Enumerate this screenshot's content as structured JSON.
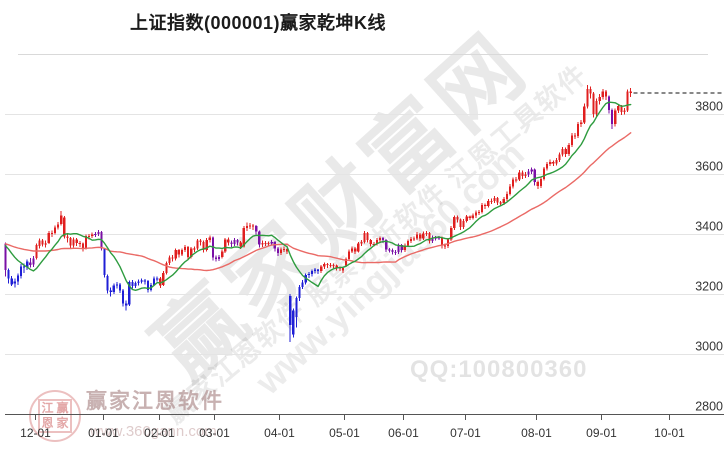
{
  "title": "上证指数(000001)赢家乾坤K线",
  "watermarks": {
    "big_text": "赢家财富网",
    "software_line": "赢家江恩软件 股票分析软件 江恩工具软件",
    "site_url": "www.yingjia360.com",
    "qq_text": "QQ:100800360",
    "brand_name": "赢家江恩软件",
    "brand_url": "www.360gann.com",
    "seal": {
      "chars": [
        "江",
        "赢",
        "恩",
        "家"
      ]
    }
  },
  "axis": {
    "y_labels": [
      3800,
      3600,
      3400,
      3200,
      3000,
      2800
    ],
    "x_ticks": [
      {
        "label": "12-01",
        "idx": 9.5
      },
      {
        "label": "01-01",
        "idx": 31.5
      },
      {
        "label": "02-01",
        "idx": 49.5
      },
      {
        "label": "03-01",
        "idx": 67.5
      },
      {
        "label": "04-01",
        "idx": 88.5
      },
      {
        "label": "05-01",
        "idx": 109.5
      },
      {
        "label": "06-01",
        "idx": 128.5
      },
      {
        "label": "07-01",
        "idx": 148.5
      },
      {
        "label": "08-01",
        "idx": 171.5
      },
      {
        "label": "09-01",
        "idx": 192.5
      },
      {
        "label": "10-01",
        "idx": 214.5
      }
    ]
  },
  "chart_data": {
    "type": "candlestick",
    "title": "上证指数(000001)赢家乾坤K线",
    "index_name": "上证指数",
    "symbol": "000001",
    "period": "daily",
    "x_range_months": [
      "2024-11",
      "2025-10"
    ],
    "ylim": [
      2800,
      3920
    ],
    "grid": true,
    "last_close": 3870,
    "candle_color_map": {
      "0": "#E01F1F",
      "1": "#1F1FD6",
      "2": "#7A10A6"
    },
    "candle_color_meaning": {
      "0": "red-uptrend",
      "1": "blue-downtrend",
      "2": "purple-neutral"
    },
    "overlays": [
      {
        "name": "short-ma",
        "window": 10,
        "color": "#2E9C3F"
      },
      {
        "name": "long-ma",
        "window": 35,
        "color": "#EA6A66"
      }
    ],
    "ma_seed": 3370,
    "candles_format": [
      "open",
      "close",
      "low",
      "high",
      "colorCode"
    ],
    "candles": [
      [
        3368,
        3280,
        3258,
        3372,
        2
      ],
      [
        3280,
        3252,
        3235,
        3285,
        1
      ],
      [
        3252,
        3232,
        3227,
        3260,
        1
      ],
      [
        3235,
        3241,
        3222,
        3252,
        1
      ],
      [
        3241,
        3262,
        3230,
        3268,
        1
      ],
      [
        3260,
        3292,
        3252,
        3300,
        1
      ],
      [
        3292,
        3288,
        3270,
        3302,
        1
      ],
      [
        3290,
        3308,
        3280,
        3315,
        1
      ],
      [
        3305,
        3296,
        3288,
        3320,
        2
      ],
      [
        3298,
        3318,
        3290,
        3326,
        2
      ],
      [
        3320,
        3363,
        3315,
        3368,
        0
      ],
      [
        3360,
        3379,
        3352,
        3385,
        0
      ],
      [
        3379,
        3365,
        3358,
        3383,
        0
      ],
      [
        3366,
        3369,
        3355,
        3378,
        0
      ],
      [
        3370,
        3404,
        3366,
        3410,
        0
      ],
      [
        3404,
        3402,
        3390,
        3412,
        0
      ],
      [
        3403,
        3422,
        3398,
        3428,
        0
      ],
      [
        3422,
        3432,
        3415,
        3440,
        0
      ],
      [
        3434,
        3461,
        3428,
        3477,
        0
      ],
      [
        3455,
        3391,
        3385,
        3460,
        0
      ],
      [
        3391,
        3386,
        3372,
        3398,
        0
      ],
      [
        3386,
        3361,
        3350,
        3390,
        0
      ],
      [
        3362,
        3382,
        3355,
        3388,
        0
      ],
      [
        3382,
        3370,
        3360,
        3386,
        0
      ],
      [
        3370,
        3368,
        3356,
        3376,
        0
      ],
      [
        3368,
        3351,
        3342,
        3372,
        0
      ],
      [
        3352,
        3393,
        3348,
        3398,
        0
      ],
      [
        3393,
        3393,
        3382,
        3400,
        0
      ],
      [
        3393,
        3398,
        3386,
        3405,
        0
      ],
      [
        3398,
        3400,
        3390,
        3407,
        2
      ],
      [
        3400,
        3407,
        3394,
        3414,
        2
      ],
      [
        3407,
        3352,
        3345,
        3410,
        2
      ],
      [
        3350,
        3263,
        3255,
        3352,
        1
      ],
      [
        3260,
        3212,
        3202,
        3265,
        1
      ],
      [
        3212,
        3206,
        3192,
        3222,
        1
      ],
      [
        3206,
        3229,
        3200,
        3235,
        1
      ],
      [
        3229,
        3231,
        3218,
        3240,
        1
      ],
      [
        3231,
        3212,
        3204,
        3236,
        1
      ],
      [
        3212,
        3169,
        3158,
        3216,
        1
      ],
      [
        3169,
        3161,
        3145,
        3178,
        1
      ],
      [
        3165,
        3240,
        3160,
        3245,
        1
      ],
      [
        3240,
        3227,
        3218,
        3246,
        1
      ],
      [
        3227,
        3236,
        3220,
        3242,
        1
      ],
      [
        3236,
        3242,
        3228,
        3248,
        1
      ],
      [
        3242,
        3245,
        3235,
        3252,
        1
      ],
      [
        3245,
        3243,
        3232,
        3250,
        1
      ],
      [
        3243,
        3213,
        3205,
        3246,
        1
      ],
      [
        3213,
        3230,
        3208,
        3236,
        1
      ],
      [
        3230,
        3252,
        3226,
        3258,
        1
      ],
      [
        3252,
        3251,
        3242,
        3258,
        1
      ],
      [
        3251,
        3229,
        3220,
        3256,
        0
      ],
      [
        3230,
        3270,
        3226,
        3276,
        0
      ],
      [
        3270,
        3303,
        3265,
        3308,
        0
      ],
      [
        3303,
        3322,
        3296,
        3328,
        0
      ],
      [
        3322,
        3318,
        3308,
        3330,
        0
      ],
      [
        3318,
        3346,
        3312,
        3352,
        0
      ],
      [
        3346,
        3332,
        3322,
        3350,
        0
      ],
      [
        3332,
        3346,
        3326,
        3352,
        0
      ],
      [
        3346,
        3356,
        3340,
        3364,
        0
      ],
      [
        3356,
        3324,
        3316,
        3360,
        0
      ],
      [
        3324,
        3351,
        3318,
        3356,
        0
      ],
      [
        3351,
        3351,
        3340,
        3358,
        0
      ],
      [
        3351,
        3379,
        3346,
        3384,
        0
      ],
      [
        3379,
        3373,
        3362,
        3383,
        0
      ],
      [
        3373,
        3346,
        3338,
        3378,
        0
      ],
      [
        3346,
        3380,
        3342,
        3386,
        0
      ],
      [
        3380,
        3388,
        3372,
        3395,
        0
      ],
      [
        3388,
        3321,
        3312,
        3392,
        2
      ],
      [
        3321,
        3317,
        3308,
        3328,
        2
      ],
      [
        3317,
        3324,
        3310,
        3330,
        2
      ],
      [
        3324,
        3342,
        3318,
        3348,
        0
      ],
      [
        3342,
        3381,
        3336,
        3386,
        0
      ],
      [
        3381,
        3372,
        3362,
        3388,
        0
      ],
      [
        3372,
        3366,
        3356,
        3378,
        2
      ],
      [
        3366,
        3380,
        3360,
        3386,
        2
      ],
      [
        3380,
        3372,
        3362,
        3384,
        2
      ],
      [
        3372,
        3359,
        3350,
        3376,
        0
      ],
      [
        3359,
        3420,
        3355,
        3426,
        0
      ],
      [
        3420,
        3426,
        3410,
        3439,
        0
      ],
      [
        3426,
        3429,
        3416,
        3436,
        0
      ],
      [
        3429,
        3426,
        3414,
        3434,
        0
      ],
      [
        3426,
        3408,
        3398,
        3430,
        2
      ],
      [
        3408,
        3365,
        3355,
        3412,
        2
      ],
      [
        3365,
        3370,
        3356,
        3378,
        0
      ],
      [
        3370,
        3370,
        3360,
        3377,
        0
      ],
      [
        3370,
        3368,
        3358,
        3375,
        0
      ],
      [
        3368,
        3373,
        3362,
        3380,
        2
      ],
      [
        3373,
        3351,
        3342,
        3377,
        2
      ],
      [
        3351,
        3336,
        3326,
        3356,
        2
      ],
      [
        3336,
        3348,
        3330,
        3355,
        0
      ],
      [
        3348,
        3350,
        3340,
        3358,
        0
      ],
      [
        3350,
        3342,
        3334,
        3352,
        0
      ],
      [
        3193,
        3096,
        3040,
        3200,
        1
      ],
      [
        3065,
        3145,
        3055,
        3152,
        1
      ],
      [
        3123,
        3186,
        3089,
        3192,
        1
      ],
      [
        3186,
        3224,
        3176,
        3230,
        1
      ],
      [
        3224,
        3239,
        3216,
        3246,
        1
      ],
      [
        3239,
        3263,
        3232,
        3268,
        1
      ],
      [
        3263,
        3267,
        3254,
        3273,
        1
      ],
      [
        3267,
        3276,
        3258,
        3281,
        1
      ],
      [
        3276,
        3281,
        3268,
        3287,
        1
      ],
      [
        3281,
        3277,
        3266,
        3284,
        1
      ],
      [
        3277,
        3291,
        3270,
        3296,
        0
      ],
      [
        3291,
        3300,
        3284,
        3305,
        0
      ],
      [
        3300,
        3296,
        3287,
        3303,
        0
      ],
      [
        3296,
        3297,
        3288,
        3303,
        0
      ],
      [
        3297,
        3295,
        3286,
        3301,
        0
      ],
      [
        3295,
        3288,
        3278,
        3298,
        0
      ],
      [
        3288,
        3286,
        3276,
        3292,
        0
      ],
      [
        3286,
        3279,
        3270,
        3290,
        0
      ],
      [
        3295,
        3316,
        3290,
        3322,
        0
      ],
      [
        3316,
        3342,
        3310,
        3348,
        0
      ],
      [
        3342,
        3352,
        3336,
        3358,
        0
      ],
      [
        3352,
        3342,
        3334,
        3356,
        0
      ],
      [
        3342,
        3369,
        3338,
        3374,
        0
      ],
      [
        3369,
        3374,
        3360,
        3380,
        0
      ],
      [
        3374,
        3403,
        3368,
        3410,
        0
      ],
      [
        3403,
        3380,
        3372,
        3406,
        0
      ],
      [
        3380,
        3367,
        3358,
        3384,
        0
      ],
      [
        3367,
        3367,
        3358,
        3374,
        0
      ],
      [
        3367,
        3380,
        3362,
        3386,
        0
      ],
      [
        3380,
        3387,
        3374,
        3392,
        0
      ],
      [
        3387,
        3380,
        3370,
        3390,
        2
      ],
      [
        3380,
        3348,
        3340,
        3383,
        2
      ],
      [
        3348,
        3347,
        3338,
        3354,
        2
      ],
      [
        3347,
        3340,
        3332,
        3352,
        2
      ],
      [
        3340,
        3340,
        3330,
        3347,
        2
      ],
      [
        3340,
        3363,
        3334,
        3368,
        2
      ],
      [
        3363,
        3347,
        3338,
        3367,
        2
      ],
      [
        3347,
        3362,
        3340,
        3368,
        0
      ],
      [
        3362,
        3376,
        3356,
        3382,
        0
      ],
      [
        3376,
        3384,
        3370,
        3390,
        0
      ],
      [
        3384,
        3385,
        3376,
        3392,
        0
      ],
      [
        3385,
        3399,
        3380,
        3406,
        0
      ],
      [
        3399,
        3385,
        3377,
        3403,
        0
      ],
      [
        3385,
        3402,
        3380,
        3408,
        0
      ],
      [
        3402,
        3403,
        3394,
        3410,
        0
      ],
      [
        3403,
        3377,
        3368,
        3406,
        0
      ],
      [
        3377,
        3389,
        3370,
        3395,
        2
      ],
      [
        3389,
        3388,
        3378,
        3394,
        2
      ],
      [
        3388,
        3388,
        3380,
        3394,
        2
      ],
      [
        3388,
        3362,
        3352,
        3392,
        0
      ],
      [
        3362,
        3360,
        3350,
        3368,
        0
      ],
      [
        3360,
        3381,
        3354,
        3386,
        0
      ],
      [
        3381,
        3420,
        3376,
        3426,
        0
      ],
      [
        3420,
        3456,
        3414,
        3462,
        0
      ],
      [
        3456,
        3448,
        3438,
        3462,
        0
      ],
      [
        3448,
        3424,
        3414,
        3452,
        0
      ],
      [
        3424,
        3444,
        3416,
        3450,
        0
      ],
      [
        3444,
        3458,
        3438,
        3463,
        0
      ],
      [
        3458,
        3454,
        3446,
        3462,
        0
      ],
      [
        3454,
        3461,
        3448,
        3468,
        0
      ],
      [
        3461,
        3472,
        3454,
        3478,
        0
      ],
      [
        3472,
        3473,
        3464,
        3480,
        0
      ],
      [
        3473,
        3497,
        3468,
        3503,
        0
      ],
      [
        3497,
        3493,
        3484,
        3501,
        0
      ],
      [
        3493,
        3510,
        3488,
        3516,
        0
      ],
      [
        3510,
        3510,
        3500,
        3518,
        0
      ],
      [
        3510,
        3520,
        3504,
        3527,
        0
      ],
      [
        3520,
        3505,
        3497,
        3524,
        0
      ],
      [
        3505,
        3503,
        3494,
        3510,
        0
      ],
      [
        3503,
        3517,
        3497,
        3524,
        0
      ],
      [
        3517,
        3534,
        3510,
        3541,
        0
      ],
      [
        3534,
        3559,
        3528,
        3566,
        0
      ],
      [
        3559,
        3582,
        3552,
        3589,
        0
      ],
      [
        3582,
        3582,
        3572,
        3590,
        0
      ],
      [
        3582,
        3605,
        3576,
        3613,
        0
      ],
      [
        3605,
        3594,
        3584,
        3612,
        0
      ],
      [
        3594,
        3598,
        3586,
        3606,
        0
      ],
      [
        3598,
        3609,
        3590,
        3617,
        2
      ],
      [
        3609,
        3615,
        3600,
        3622,
        2
      ],
      [
        3615,
        3573,
        3562,
        3619,
        2
      ],
      [
        3573,
        3560,
        3550,
        3578,
        0
      ],
      [
        3560,
        3583,
        3554,
        3590,
        0
      ],
      [
        3583,
        3618,
        3578,
        3624,
        0
      ],
      [
        3618,
        3634,
        3612,
        3640,
        0
      ],
      [
        3634,
        3640,
        3626,
        3648,
        0
      ],
      [
        3640,
        3635,
        3626,
        3645,
        0
      ],
      [
        3635,
        3647,
        3628,
        3654,
        0
      ],
      [
        3647,
        3665,
        3640,
        3672,
        0
      ],
      [
        3665,
        3683,
        3658,
        3690,
        0
      ],
      [
        3683,
        3666,
        3656,
        3688,
        0
      ],
      [
        3666,
        3696,
        3660,
        3704,
        0
      ],
      [
        3696,
        3728,
        3690,
        3736,
        0
      ],
      [
        3728,
        3727,
        3716,
        3736,
        0
      ],
      [
        3727,
        3766,
        3720,
        3774,
        0
      ],
      [
        3766,
        3771,
        3756,
        3780,
        0
      ],
      [
        3771,
        3825,
        3766,
        3835,
        0
      ],
      [
        3825,
        3883,
        3818,
        3896,
        0
      ],
      [
        3883,
        3868,
        3852,
        3892,
        0
      ],
      [
        3868,
        3800,
        3788,
        3874,
        0
      ],
      [
        3800,
        3843,
        3792,
        3852,
        0
      ],
      [
        3843,
        3857,
        3832,
        3866,
        0
      ],
      [
        3857,
        3875,
        3848,
        3884,
        0
      ],
      [
        3875,
        3858,
        3846,
        3880,
        0
      ],
      [
        3858,
        3813,
        3802,
        3862,
        2
      ],
      [
        3813,
        3766,
        3750,
        3818,
        2
      ],
      [
        3766,
        3812,
        3758,
        3818,
        0
      ],
      [
        3812,
        3826,
        3804,
        3834,
        0
      ],
      [
        3826,
        3807,
        3796,
        3830,
        0
      ],
      [
        3807,
        3812,
        3798,
        3820,
        0
      ],
      [
        3812,
        3875,
        3806,
        3882,
        0
      ],
      [
        3875,
        3870,
        3856,
        3886,
        0
      ]
    ]
  },
  "style_colors": {
    "grid_line": "#e4e4e4",
    "axis_line": "#555555",
    "axis_text": "#333333",
    "dashed_last_price_line": "#111111"
  }
}
